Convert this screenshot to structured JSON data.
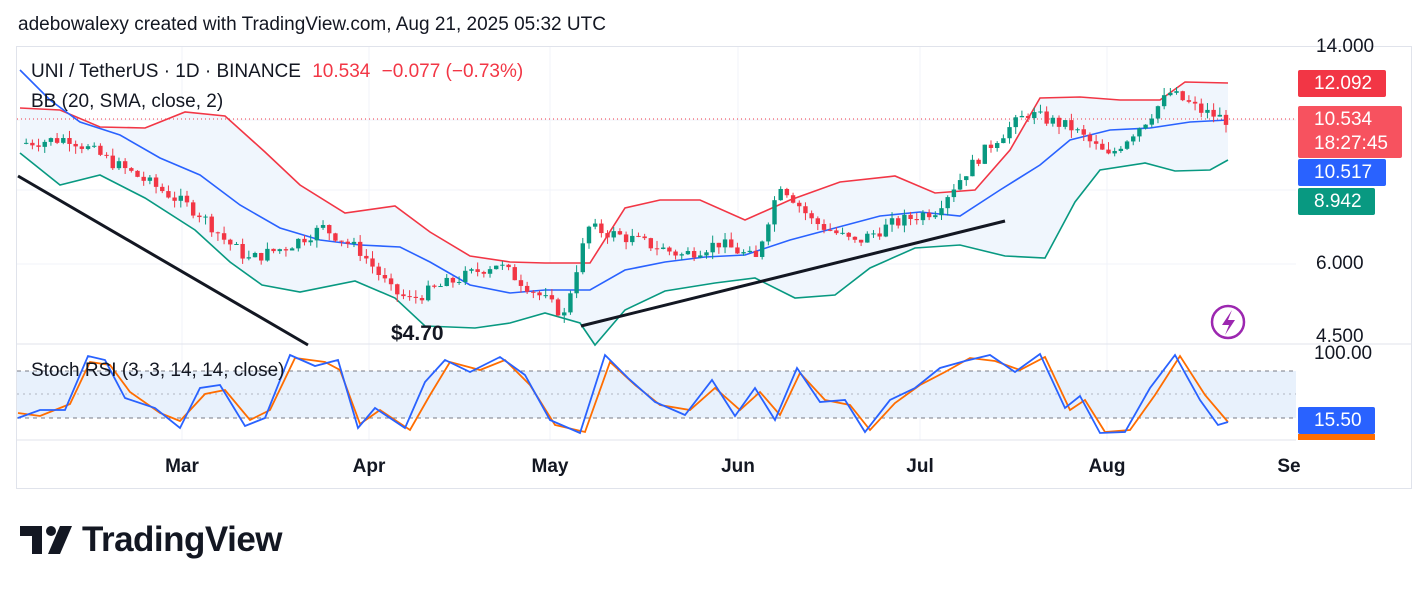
{
  "header": {
    "attribution": "adebowalexy created with TradingView.com, Aug 21, 2025 05:32 UTC"
  },
  "legend": {
    "symbol": "UNI / TetherUS · 1D · BINANCE",
    "last": "10.534",
    "change": "−0.077 (−0.73%)",
    "bb": "BB (20, SMA, close, 2)",
    "stoch": "Stoch RSI (3, 3, 14, 14, close)"
  },
  "price_axis": {
    "ticks": [
      "14.000",
      "6.000",
      "4.500"
    ],
    "badges": {
      "bb_upper": "12.092",
      "last_price": "10.534",
      "countdown": "18:27:45",
      "bb_basis": "10.517",
      "bb_lower": "8.942"
    }
  },
  "stoch_axis": {
    "top": "100.00",
    "value": "15.50"
  },
  "annotation": {
    "low_label": "$4.70"
  },
  "time_axis": [
    "Mar",
    "Apr",
    "May",
    "Jun",
    "Jul",
    "Aug",
    "Se"
  ],
  "brand": {
    "name": "TradingView"
  },
  "colors": {
    "up": "#089981",
    "down": "#f23645",
    "bb_upper": "#f23645",
    "bb_basis": "#2962ff",
    "bb_lower": "#089981",
    "bb_fill": "#f0f6fd",
    "stoch_k": "#2962ff",
    "stoch_d": "#ff6d00",
    "stoch_band": "#e8f1fc"
  },
  "icons": [
    "lightning-icon",
    "tradingview-logo-icon"
  ],
  "chart_data": {
    "type": "candlestick",
    "symbol": "UNI / TetherUS",
    "interval": "1D",
    "exchange": "BINANCE",
    "price_scale": "log",
    "ylim": [
      4.5,
      14.0
    ],
    "date_range": [
      "2025-02-07",
      "2025-08-21"
    ],
    "series": [
      {
        "name": "close",
        "points": [
          [
            "2025-02-07",
            9.6
          ],
          [
            "2025-02-15",
            9.8
          ],
          [
            "2025-02-22",
            8.9
          ],
          [
            "2025-03-01",
            8.1
          ],
          [
            "2025-03-08",
            7.3
          ],
          [
            "2025-03-12",
            6.6
          ],
          [
            "2025-03-16",
            6.1
          ],
          [
            "2025-03-22",
            6.4
          ],
          [
            "2025-03-28",
            6.9
          ],
          [
            "2025-04-03",
            6.3
          ],
          [
            "2025-04-08",
            5.4
          ],
          [
            "2025-04-11",
            5.2
          ],
          [
            "2025-04-18",
            5.6
          ],
          [
            "2025-04-25",
            6.0
          ],
          [
            "2025-05-01",
            5.4
          ],
          [
            "2025-05-06",
            4.9
          ],
          [
            "2025-05-08",
            5.9
          ],
          [
            "2025-05-10",
            6.9
          ],
          [
            "2025-05-17",
            6.6
          ],
          [
            "2025-05-25",
            6.2
          ],
          [
            "2025-05-31",
            6.5
          ],
          [
            "2025-06-06",
            6.1
          ],
          [
            "2025-06-10",
            8.2
          ],
          [
            "2025-06-15",
            7.1
          ],
          [
            "2025-06-22",
            6.5
          ],
          [
            "2025-06-28",
            7.0
          ],
          [
            "2025-07-05",
            7.4
          ],
          [
            "2025-07-10",
            8.6
          ],
          [
            "2025-07-15",
            9.8
          ],
          [
            "2025-07-20",
            10.8
          ],
          [
            "2025-07-27",
            10.2
          ],
          [
            "2025-08-02",
            9.1
          ],
          [
            "2025-08-08",
            10.5
          ],
          [
            "2025-08-12",
            11.7
          ],
          [
            "2025-08-17",
            10.9
          ],
          [
            "2025-08-21",
            10.534
          ]
        ]
      }
    ],
    "bollinger": {
      "period": 20,
      "ma": "SMA",
      "source": "close",
      "mult": 2,
      "last": {
        "upper": 12.092,
        "basis": 10.517,
        "lower": 8.942
      }
    },
    "stoch_rsi": {
      "k": 3,
      "d": 3,
      "rsi_length": 14,
      "stoch_length": 14,
      "source": "close",
      "last": 15.5,
      "bands": [
        20,
        80
      ]
    },
    "annotations": [
      {
        "label": "$4.70",
        "date": "2025-04-07",
        "price": 4.7
      }
    ],
    "trendlines": [
      {
        "from": [
          "2025-02-07",
          8.9
        ],
        "to": [
          "2025-03-26",
          4.5
        ]
      },
      {
        "from": [
          "2025-05-06",
          4.8
        ],
        "to": [
          "2025-07-16",
          7.2
        ]
      }
    ]
  }
}
